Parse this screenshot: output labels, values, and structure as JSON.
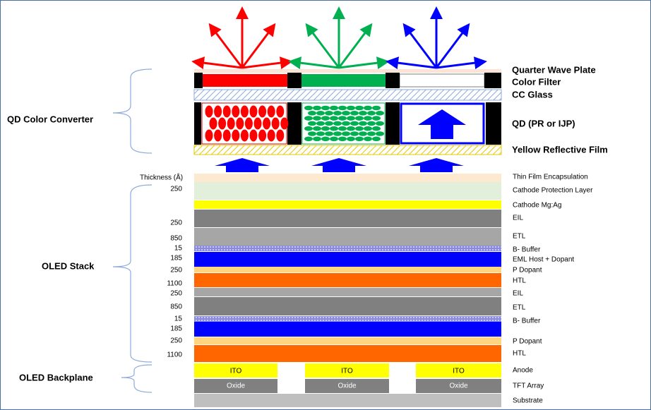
{
  "groups": [
    "QD Color Converter",
    "OLED Stack",
    "OLED Backplane"
  ],
  "qd_layers": [
    "Quarter Wave Plate",
    "Color Filter",
    "CC Glass",
    "QD (PR or IJP)",
    "Yellow Reflective Film"
  ],
  "thickness_header": "Thickness (Å)",
  "thicknesses": [
    250,
    250,
    850,
    15,
    185,
    250,
    1100,
    250,
    850,
    15,
    185,
    250,
    1100
  ],
  "layer_labels": [
    "Thin Film Encapsulation",
    "Cathode Protection Layer",
    "Cathode Mg:Ag",
    "EIL",
    "ETL",
    "B- Buffer",
    "EML Host + Dopant",
    "P Dopant",
    "HTL",
    "EIL",
    "ETL",
    "B- Buffer",
    "P Dopant",
    "HTL",
    "Anode",
    "TFT Array",
    "Substrate"
  ],
  "anode_material": "ITO",
  "tft_material": "Oxide"
}
